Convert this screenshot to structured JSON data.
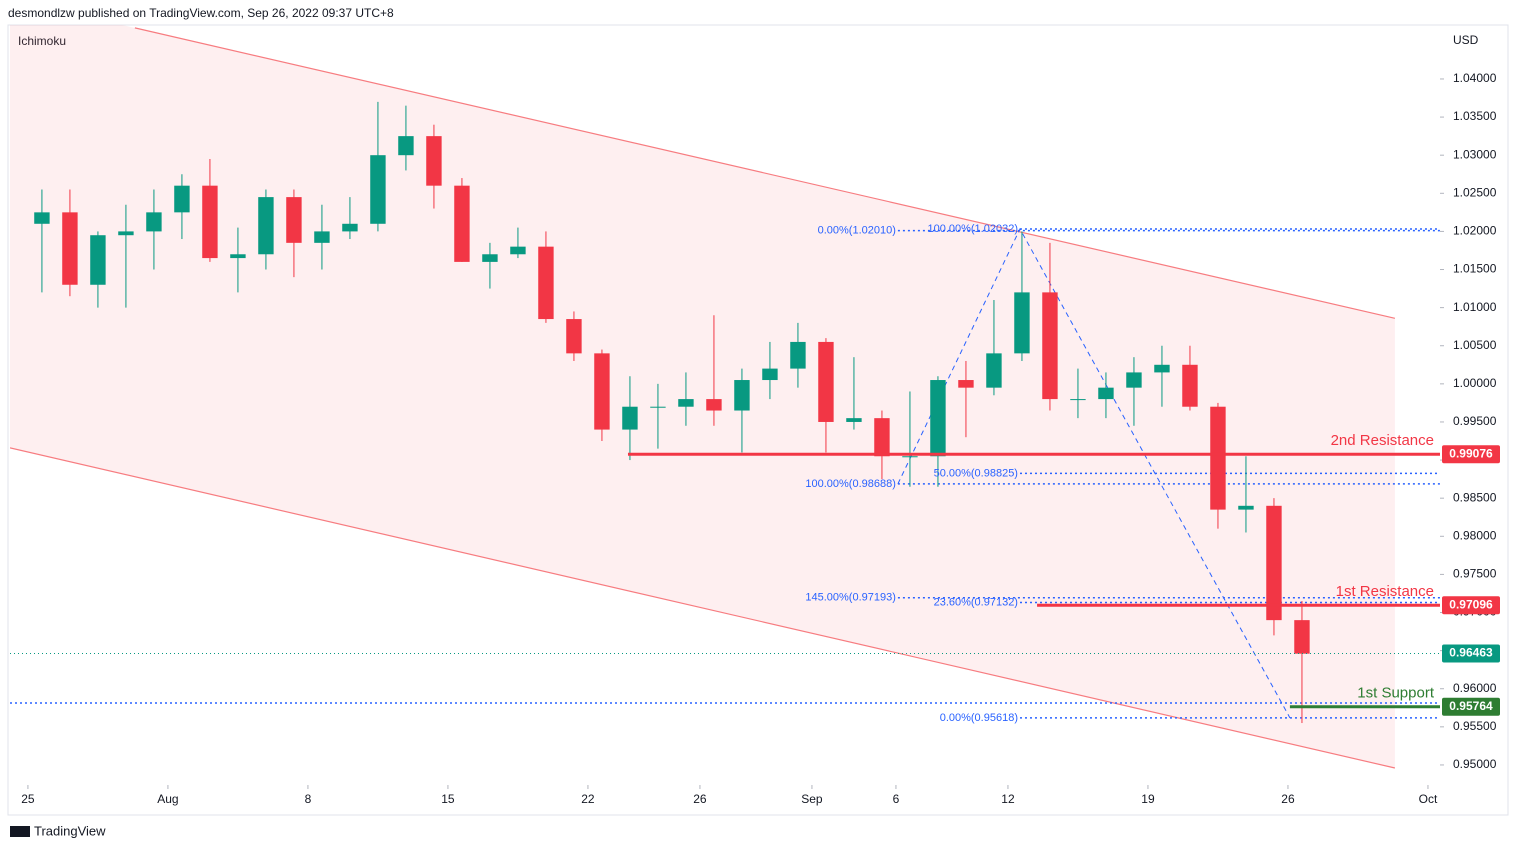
{
  "header": {
    "byline": "desmondlzw published on TradingView.com, Sep 26, 2022 09:37 UTC+8",
    "logo_text": "TradingView"
  },
  "chart_data": {
    "type": "candlestick",
    "indicator": "Ichimoku",
    "y_unit": "USD",
    "up_color": "#089981",
    "down_color": "#f23645",
    "x": [
      0.5,
      1.5,
      2.5,
      3.5,
      4.5,
      5.5,
      6.5,
      7.5,
      8.5,
      9.5,
      10.5,
      11.5,
      12.5,
      13.5,
      14.5,
      15.5,
      16.5,
      17.5,
      18.5,
      19.5,
      20.5,
      21.5,
      22.5,
      23.5,
      24.5,
      25.5,
      26.5,
      27.5,
      28.5,
      29.5,
      30.5,
      31.5,
      32.5,
      33.5,
      34.5,
      35.5,
      36.5,
      37.5,
      38.5,
      39.5,
      40.5,
      41.5,
      42.5,
      43.5,
      44.5,
      45.5
    ],
    "open": [
      1.021,
      1.0225,
      1.013,
      1.0195,
      1.02,
      1.0225,
      1.026,
      1.0165,
      1.017,
      1.0245,
      1.0185,
      1.02,
      1.021,
      1.03,
      1.0325,
      1.026,
      1.016,
      1.017,
      1.018,
      1.0085,
      1.004,
      0.994,
      0.997,
      0.997,
      0.998,
      0.9965,
      1.0005,
      1.002,
      1.0055,
      0.995,
      0.9955,
      0.9905,
      0.9905,
      1.0005,
      0.9995,
      1.004,
      1.012,
      0.998,
      0.998,
      0.9995,
      1.0015,
      1.0025,
      0.997,
      0.9835,
      0.984,
      0.969
    ],
    "high": [
      1.0255,
      1.0255,
      1.02,
      1.0235,
      1.0255,
      1.0275,
      1.0295,
      1.0205,
      1.0255,
      1.0255,
      1.0235,
      1.0245,
      1.037,
      1.0365,
      1.034,
      1.027,
      1.0185,
      1.0205,
      1.02,
      1.0095,
      1.0045,
      1.001,
      1.0,
      1.0015,
      1.009,
      1.002,
      1.0055,
      1.008,
      1.006,
      1.0035,
      0.9965,
      0.999,
      1.001,
      1.003,
      1.011,
      1.02,
      1.0185,
      1.002,
      1.0015,
      1.0035,
      1.005,
      1.005,
      0.9975,
      0.9905,
      0.985,
      0.9715
    ],
    "low": [
      1.012,
      1.0115,
      1.01,
      1.01,
      1.015,
      1.019,
      1.016,
      1.012,
      1.015,
      1.014,
      1.015,
      1.019,
      1.02,
      1.028,
      1.023,
      1.016,
      1.0125,
      1.0165,
      1.008,
      1.003,
      0.9925,
      0.99,
      0.9915,
      0.9945,
      0.9945,
      0.991,
      0.998,
      0.9995,
      0.991,
      0.994,
      0.9875,
      0.9865,
      0.9865,
      0.993,
      0.9985,
      1.003,
      0.9965,
      0.9955,
      0.9955,
      0.9945,
      0.997,
      0.9965,
      0.981,
      0.9805,
      0.967,
      0.9555
    ],
    "close": [
      1.0225,
      1.013,
      1.0195,
      1.02,
      1.0225,
      1.026,
      1.0165,
      1.017,
      1.0245,
      1.0185,
      1.02,
      1.021,
      1.03,
      1.0325,
      1.026,
      1.016,
      1.017,
      1.018,
      1.0085,
      1.004,
      0.994,
      0.997,
      0.997,
      0.998,
      0.9965,
      1.0005,
      1.002,
      1.0055,
      0.995,
      0.9955,
      0.9905,
      0.9905,
      1.0005,
      0.9995,
      1.004,
      1.012,
      0.998,
      0.998,
      0.9995,
      1.0015,
      1.0025,
      0.997,
      0.9835,
      0.984,
      0.969,
      0.9646
    ],
    "xlim": [
      -0.64,
      50.43
    ],
    "xticks": [
      {
        "value": 0,
        "label": "25"
      },
      {
        "value": 5,
        "label": "Aug"
      },
      {
        "value": 10,
        "label": "8"
      },
      {
        "value": 15,
        "label": "15"
      },
      {
        "value": 20,
        "label": "22"
      },
      {
        "value": 24,
        "label": "26"
      },
      {
        "value": 28,
        "label": "Sep"
      },
      {
        "value": 31,
        "label": "6"
      },
      {
        "value": 35,
        "label": "12"
      },
      {
        "value": 40,
        "label": "19"
      },
      {
        "value": 45,
        "label": "26"
      },
      {
        "value": 50,
        "label": "Oct"
      }
    ],
    "ylim": [
      0.94737,
      1.04708
    ],
    "yticks": [
      {
        "value": 1.04,
        "label": "1.04000"
      },
      {
        "value": 1.035,
        "label": "1.03500"
      },
      {
        "value": 1.03,
        "label": "1.03000"
      },
      {
        "value": 1.025,
        "label": "1.02500"
      },
      {
        "value": 1.02,
        "label": "1.02000"
      },
      {
        "value": 1.015,
        "label": "1.01500"
      },
      {
        "value": 1.01,
        "label": "1.01000"
      },
      {
        "value": 1.005,
        "label": "1.00500"
      },
      {
        "value": 1.0,
        "label": "1.00000"
      },
      {
        "value": 0.995,
        "label": "0.99500"
      },
      {
        "value": 0.99,
        "label": "0.99000"
      },
      {
        "value": 0.985,
        "label": "0.98500"
      },
      {
        "value": 0.98,
        "label": "0.98000"
      },
      {
        "value": 0.975,
        "label": "0.97500"
      },
      {
        "value": 0.97,
        "label": "0.97000"
      },
      {
        "value": 0.965,
        "label": "0.96500"
      },
      {
        "value": 0.96,
        "label": "0.96000"
      },
      {
        "value": 0.955,
        "label": "0.95500"
      },
      {
        "value": 0.95,
        "label": "0.95000"
      }
    ],
    "channel": {
      "color": "#f77c80",
      "fill": "rgba(247,124,128,0.12)",
      "upper": {
        "x": [
          3.82,
          48.82
        ],
        "y": [
          1.0467,
          1.0086
        ]
      },
      "lower": {
        "x": [
          -0.64,
          48.82
        ],
        "y": [
          0.9916,
          0.9496
        ]
      }
    },
    "fib_path": {
      "color": "#2962ff",
      "x": [
        31.07,
        35.43,
        45.07
      ],
      "y": [
        0.98688,
        1.02032,
        0.95618
      ]
    },
    "fib_lines": [
      {
        "label": "0.00%(1.02010)",
        "value": 1.0201,
        "x_start": 31.07
      },
      {
        "label": "100.00%(1.02032)",
        "value": 1.02032,
        "x_start": 35.43
      },
      {
        "label": "50.00%(0.98825)",
        "value": 0.98825,
        "x_start": 35.43
      },
      {
        "label": "100.00%(0.98688)",
        "value": 0.98688,
        "x_start": 31.07
      },
      {
        "label": "145.00%(0.97193)",
        "value": 0.97193,
        "x_start": 31.07
      },
      {
        "label": "23.60%(0.97132)",
        "value": 0.97132,
        "x_start": 35.43
      },
      {
        "label": "0.00%(0.95618)",
        "value": 0.95618,
        "x_start": 35.43
      }
    ],
    "dotted_line": {
      "value": 0.95813,
      "color": "#2962ff"
    },
    "levels": [
      {
        "name": "2nd Resistance",
        "value": 0.99076,
        "label": "0.99076",
        "color": "#f23645",
        "x_start": 21.43
      },
      {
        "name": "1st Resistance",
        "value": 0.97096,
        "label": "0.97096",
        "color": "#f23645",
        "x_start": 36.04
      },
      {
        "value": 0.96463,
        "label": "0.96463",
        "color": "#089981",
        "x_start": -0.64
      },
      {
        "name": "1st Support",
        "value": 0.95764,
        "label": "0.95764",
        "color": "#2e7d32",
        "x_start": 45.07
      }
    ]
  }
}
